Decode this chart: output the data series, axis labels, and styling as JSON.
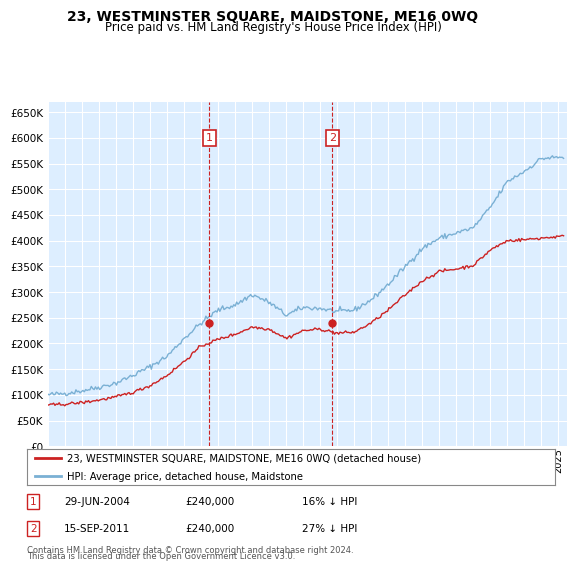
{
  "title": "23, WESTMINSTER SQUARE, MAIDSTONE, ME16 0WQ",
  "subtitle": "Price paid vs. HM Land Registry's House Price Index (HPI)",
  "ylim": [
    0,
    670000
  ],
  "yticks": [
    0,
    50000,
    100000,
    150000,
    200000,
    250000,
    300000,
    350000,
    400000,
    450000,
    500000,
    550000,
    600000,
    650000
  ],
  "ytick_labels": [
    "£0",
    "£50K",
    "£100K",
    "£150K",
    "£200K",
    "£250K",
    "£300K",
    "£350K",
    "£400K",
    "£450K",
    "£500K",
    "£550K",
    "£600K",
    "£650K"
  ],
  "background_color": "#ffffff",
  "plot_bg_color": "#ddeeff",
  "grid_color": "#ffffff",
  "hpi_color": "#7ab0d4",
  "price_color": "#cc2222",
  "annotation_color": "#cc2222",
  "transaction1_price": 240000,
  "transaction1_label": "1",
  "transaction1_x": 2004.49,
  "transaction2_price": 240000,
  "transaction2_label": "2",
  "transaction2_x": 2011.71,
  "legend_label_price": "23, WESTMINSTER SQUARE, MAIDSTONE, ME16 0WQ (detached house)",
  "legend_label_hpi": "HPI: Average price, detached house, Maidstone",
  "footnote1": "Contains HM Land Registry data © Crown copyright and database right 2024.",
  "footnote2": "This data is licensed under the Open Government Licence v3.0.",
  "xmin": 1995.0,
  "xmax": 2025.5,
  "ann1_date": "29-JUN-2004",
  "ann1_price": "£240,000",
  "ann1_pct": "16% ↓ HPI",
  "ann2_date": "15-SEP-2011",
  "ann2_price": "£240,000",
  "ann2_pct": "27% ↓ HPI"
}
